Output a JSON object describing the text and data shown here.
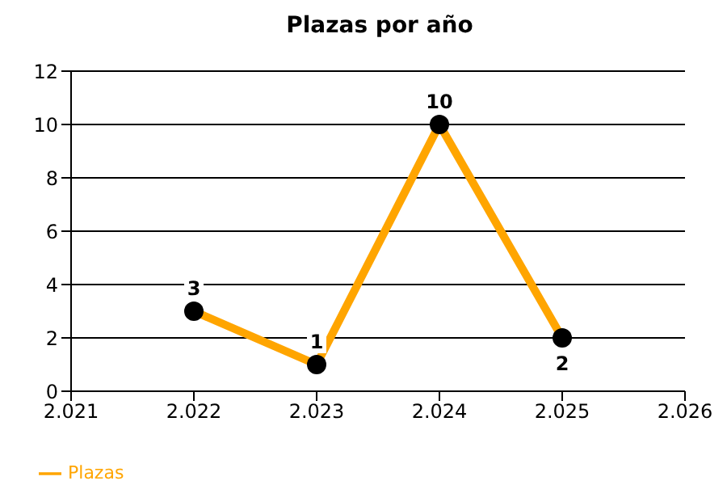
{
  "chart_data": {
    "type": "line",
    "title": "Plazas por año",
    "x": [
      2022,
      2023,
      2024,
      2025
    ],
    "series": [
      {
        "name": "Plazas",
        "color": "#ffa500",
        "values": [
          3,
          1,
          10,
          2
        ]
      }
    ],
    "xlim": [
      2021,
      2026
    ],
    "xticks": [
      {
        "value": 2021,
        "label": "2.021"
      },
      {
        "value": 2022,
        "label": "2.022"
      },
      {
        "value": 2023,
        "label": "2.023"
      },
      {
        "value": 2024,
        "label": "2.024"
      },
      {
        "value": 2025,
        "label": "2.025"
      },
      {
        "value": 2026,
        "label": "2.026"
      }
    ],
    "ylim": [
      0,
      12
    ],
    "yticks": [
      0,
      2,
      4,
      6,
      8,
      10,
      12
    ],
    "grid": "y",
    "legend": "bottom left",
    "marker": "circle",
    "line_style": "solid",
    "data_labels": true
  }
}
